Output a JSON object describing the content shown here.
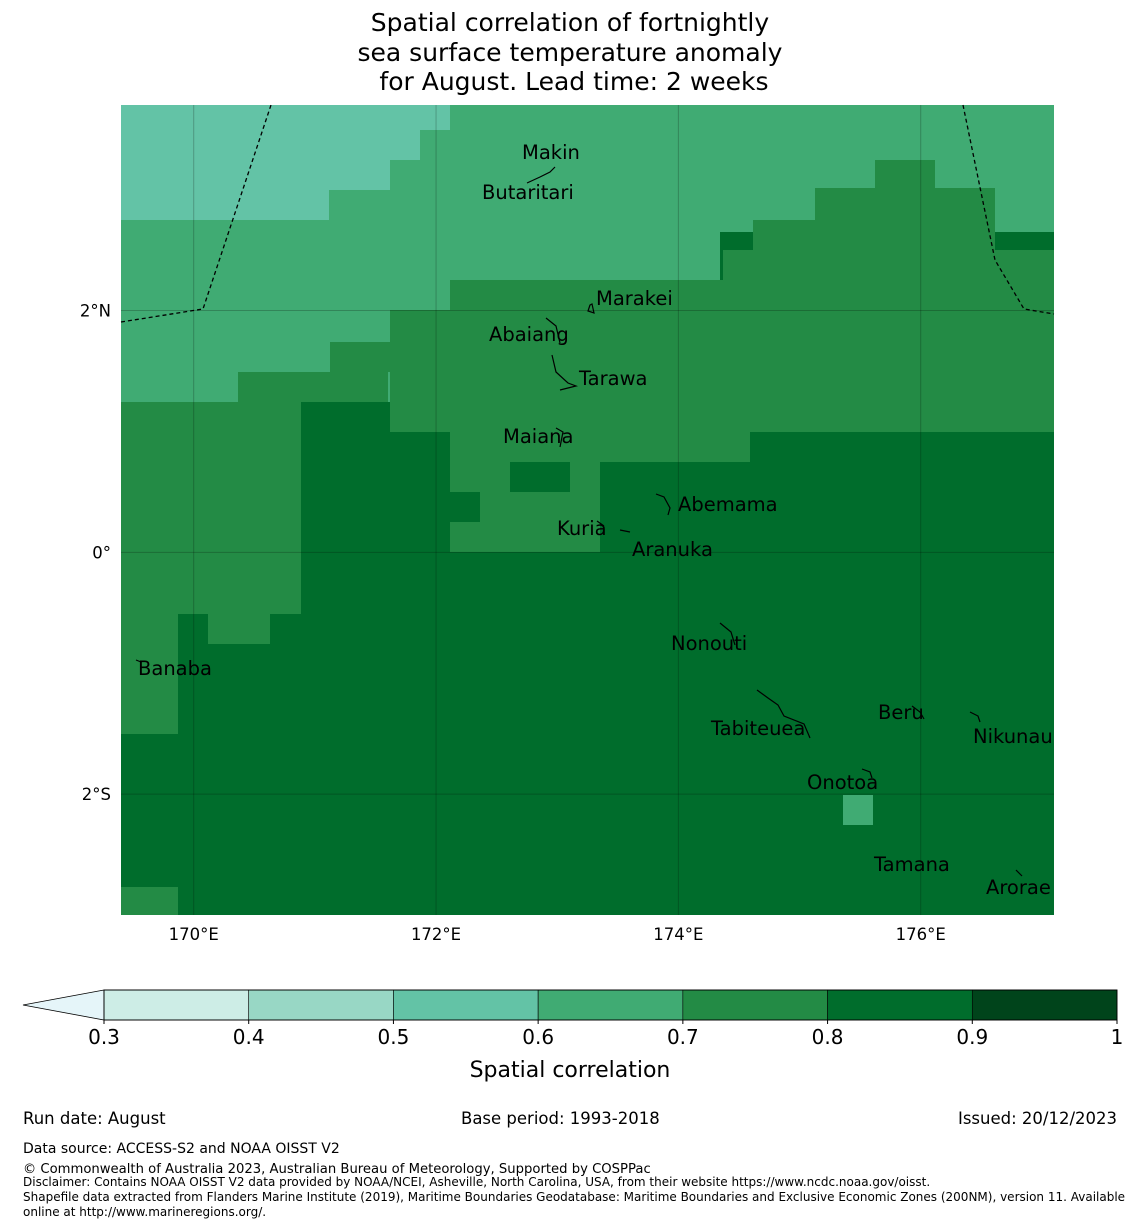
{
  "title_lines": [
    "Spatial correlation of fortnightly",
    "sea surface temperature anomaly",
    " for August. Lead time: 2 weeks"
  ],
  "map": {
    "lon_range": [
      169.4,
      177.1
    ],
    "lat_range": [
      -3.0,
      3.7
    ],
    "lon_ticks": [
      {
        "value": 170,
        "label": "170°E"
      },
      {
        "value": 172,
        "label": "172°E"
      },
      {
        "value": 174,
        "label": "174°E"
      },
      {
        "value": 176,
        "label": "176°E"
      }
    ],
    "lat_ticks": [
      {
        "value": 2,
        "label": "2°N"
      },
      {
        "value": 0,
        "label": "0°"
      },
      {
        "value": -2,
        "label": "2°S"
      }
    ],
    "field_description": "gridded spatial correlation, ~0.25 degree cells",
    "grid_rows_lat_edges": [
      3.7,
      3.5,
      3.25,
      3.0,
      2.75,
      2.5,
      2.25,
      2.0,
      1.75,
      1.5,
      1.25,
      1.0,
      0.75,
      0.5,
      0.25,
      0.0,
      -0.25,
      -0.5,
      -0.75,
      -1.0,
      -1.25,
      -1.5,
      -1.75,
      -2.0,
      -2.25,
      -2.5,
      -2.75,
      -3.0
    ],
    "islands": [
      {
        "name": "Makin",
        "lon": 173.0,
        "lat": 3.25
      },
      {
        "name": "Butaritari",
        "lon": 172.8,
        "lat": 3.05
      },
      {
        "name": "Marakei",
        "lon": 173.3,
        "lat": 2.0
      },
      {
        "name": "Abaiang",
        "lon": 172.9,
        "lat": 1.85
      },
      {
        "name": "Tarawa",
        "lon": 173.0,
        "lat": 1.45
      },
      {
        "name": "Maiana",
        "lon": 173.0,
        "lat": 0.92
      },
      {
        "name": "Abemama",
        "lon": 173.85,
        "lat": 0.4
      },
      {
        "name": "Kuria",
        "lon": 173.4,
        "lat": 0.22
      },
      {
        "name": "Aranuka",
        "lon": 173.6,
        "lat": 0.17
      },
      {
        "name": "Nonouti",
        "lon": 174.4,
        "lat": -0.65
      },
      {
        "name": "Banaba",
        "lon": 169.55,
        "lat": -0.88
      },
      {
        "name": "Tabiteuea",
        "lon": 174.8,
        "lat": -1.3
      },
      {
        "name": "Beru",
        "lon": 176.0,
        "lat": -1.35
      },
      {
        "name": "Nikunau",
        "lon": 176.45,
        "lat": -1.35
      },
      {
        "name": "Onotoa",
        "lon": 175.55,
        "lat": -1.8
      },
      {
        "name": "Tamana",
        "lon": 175.98,
        "lat": -2.5
      },
      {
        "name": "Arorae",
        "lon": 176.82,
        "lat": -2.64
      }
    ]
  },
  "colorbar": {
    "label": "Spatial correlation",
    "ticks": [
      "0.3",
      "0.4",
      "0.5",
      "0.6",
      "0.7",
      "0.8",
      "0.9",
      "1"
    ],
    "bins": [
      {
        "from": 0.3,
        "to": 0.4,
        "color": "#cdede6"
      },
      {
        "from": 0.4,
        "to": 0.5,
        "color": "#98d7c5"
      },
      {
        "from": 0.5,
        "to": 0.6,
        "color": "#63c3a6"
      },
      {
        "from": 0.6,
        "to": 0.7,
        "color": "#40ab73"
      },
      {
        "from": 0.7,
        "to": 0.8,
        "color": "#238b45"
      },
      {
        "from": 0.8,
        "to": 0.9,
        "color": "#006d2c"
      },
      {
        "from": 0.9,
        "to": 1.0,
        "color": "#00441b"
      }
    ],
    "under_color": "#e5f5f9"
  },
  "footer": {
    "run_date": "Run date: August",
    "base_period": "Base period: 1993-2018",
    "issued": "Issued: 20/12/2023",
    "data_source": "Data source: ACCESS-S2 and NOAA OISST V2",
    "copyright": "© Commonwealth of Australia 2023, Australian Bureau of Meteorology, Supported by COSPPac",
    "disclaimer": "Disclaimer: Contains NOAA OISST V2 data provided by NOAA/NCEI, Asheville, North Carolina, USA, from their website https://www.ncdc.noaa.gov/oisst.",
    "shapefile_line1": "Shapefile data extracted from Flanders Marine Institute (2019), Maritime Boundaries Geodatabase: Maritime Boundaries and Exclusive Economic Zones (200NM), version 11. Available",
    "shapefile_line2": "online at http://www.marineregions.org/."
  }
}
